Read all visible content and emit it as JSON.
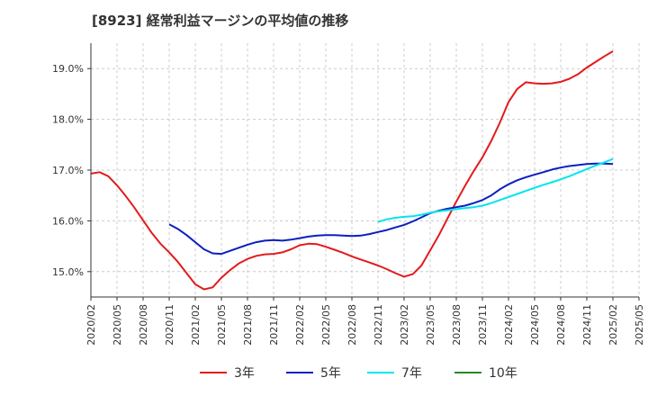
{
  "chart_data": {
    "type": "line",
    "title": "[8923]  経常利益マージンの平均値の推移",
    "y_tick_labels": [
      "15.0%",
      "16.0%",
      "17.0%",
      "18.0%",
      "19.0%"
    ],
    "y_ticks": [
      15.0,
      16.0,
      17.0,
      18.0,
      19.0
    ],
    "ylim": [
      14.5,
      19.5
    ],
    "x_tick_labels": [
      "2020/02",
      "2020/05",
      "2020/08",
      "2020/11",
      "2021/02",
      "2021/05",
      "2021/08",
      "2021/11",
      "2022/02",
      "2022/05",
      "2022/08",
      "2022/11",
      "2023/02",
      "2023/05",
      "2023/08",
      "2023/11",
      "2024/02",
      "2024/05",
      "2024/08",
      "2024/11",
      "2025/02",
      "2025/05"
    ],
    "grid": true,
    "legend_position": "bottom",
    "series": [
      {
        "name": "3年",
        "color": "#e31a1c",
        "x": [
          "2020/02",
          "2020/03",
          "2020/04",
          "2020/05",
          "2020/06",
          "2020/07",
          "2020/08",
          "2020/09",
          "2020/10",
          "2020/11",
          "2020/12",
          "2021/01",
          "2021/02",
          "2021/03",
          "2021/04",
          "2021/05",
          "2021/06",
          "2021/07",
          "2021/08",
          "2021/09",
          "2021/10",
          "2021/11",
          "2021/12",
          "2022/01",
          "2022/02",
          "2022/03",
          "2022/04",
          "2022/05",
          "2022/06",
          "2022/07",
          "2022/08",
          "2022/09",
          "2022/10",
          "2022/11",
          "2022/12",
          "2023/01",
          "2023/02",
          "2023/03",
          "2023/04",
          "2023/05",
          "2023/06",
          "2023/07",
          "2023/08",
          "2023/09",
          "2023/10",
          "2023/11",
          "2023/12",
          "2024/01",
          "2024/02",
          "2024/03",
          "2024/04",
          "2024/05",
          "2024/06",
          "2024/07",
          "2024/08",
          "2024/09",
          "2024/10",
          "2024/11",
          "2024/12",
          "2025/01",
          "2025/02"
        ],
        "values": [
          16.93,
          16.96,
          16.88,
          16.7,
          16.49,
          16.26,
          16.01,
          15.76,
          15.55,
          15.38,
          15.19,
          14.97,
          14.75,
          14.65,
          14.69,
          14.88,
          15.03,
          15.16,
          15.25,
          15.31,
          15.34,
          15.35,
          15.38,
          15.44,
          15.52,
          15.55,
          15.54,
          15.49,
          15.43,
          15.37,
          15.3,
          15.24,
          15.18,
          15.12,
          15.05,
          14.97,
          14.9,
          14.95,
          15.12,
          15.42,
          15.72,
          16.05,
          16.38,
          16.69,
          16.98,
          17.25,
          17.57,
          17.93,
          18.34,
          18.6,
          18.73,
          18.71,
          18.7,
          18.71,
          18.74,
          18.8,
          18.89,
          19.02,
          19.13,
          19.24,
          19.34
        ]
      },
      {
        "name": "5年",
        "color": "#0a1fbf",
        "x": [
          "2020/11",
          "2020/12",
          "2021/01",
          "2021/02",
          "2021/03",
          "2021/04",
          "2021/05",
          "2021/06",
          "2021/07",
          "2021/08",
          "2021/09",
          "2021/10",
          "2021/11",
          "2021/12",
          "2022/01",
          "2022/02",
          "2022/03",
          "2022/04",
          "2022/05",
          "2022/06",
          "2022/07",
          "2022/08",
          "2022/09",
          "2022/10",
          "2022/11",
          "2022/12",
          "2023/01",
          "2023/02",
          "2023/03",
          "2023/04",
          "2023/05",
          "2023/06",
          "2023/07",
          "2023/08",
          "2023/09",
          "2023/10",
          "2023/11",
          "2023/12",
          "2024/01",
          "2024/02",
          "2024/03",
          "2024/04",
          "2024/05",
          "2024/06",
          "2024/07",
          "2024/08",
          "2024/09",
          "2024/10",
          "2024/11",
          "2024/12",
          "2025/01",
          "2025/02"
        ],
        "values": [
          15.93,
          15.84,
          15.72,
          15.58,
          15.44,
          15.36,
          15.35,
          15.41,
          15.47,
          15.53,
          15.58,
          15.61,
          15.62,
          15.61,
          15.63,
          15.66,
          15.69,
          15.71,
          15.72,
          15.72,
          15.71,
          15.7,
          15.71,
          15.74,
          15.78,
          15.82,
          15.87,
          15.92,
          15.99,
          16.07,
          16.15,
          16.2,
          16.24,
          16.27,
          16.3,
          16.35,
          16.41,
          16.5,
          16.62,
          16.72,
          16.8,
          16.86,
          16.91,
          16.96,
          17.01,
          17.05,
          17.08,
          17.1,
          17.12,
          17.13,
          17.13,
          17.12
        ]
      },
      {
        "name": "7年",
        "color": "#00e5ee",
        "x": [
          "2022/11",
          "2022/12",
          "2023/01",
          "2023/02",
          "2023/03",
          "2023/04",
          "2023/05",
          "2023/06",
          "2023/07",
          "2023/08",
          "2023/09",
          "2023/10",
          "2023/11",
          "2023/12",
          "2024/01",
          "2024/02",
          "2024/03",
          "2024/04",
          "2024/05",
          "2024/06",
          "2024/07",
          "2024/08",
          "2024/09",
          "2024/10",
          "2024/11",
          "2024/12",
          "2025/01",
          "2025/02"
        ],
        "values": [
          15.98,
          16.03,
          16.06,
          16.08,
          16.09,
          16.12,
          16.16,
          16.19,
          16.21,
          16.23,
          16.25,
          16.27,
          16.3,
          16.35,
          16.41,
          16.47,
          16.53,
          16.59,
          16.65,
          16.71,
          16.76,
          16.82,
          16.88,
          16.95,
          17.02,
          17.09,
          17.15,
          17.22
        ]
      },
      {
        "name": "10年",
        "color": "#228b22",
        "x": [],
        "values": []
      }
    ]
  }
}
